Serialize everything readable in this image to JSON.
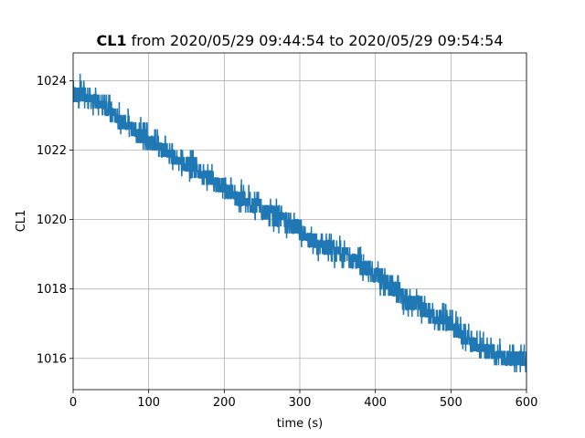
{
  "chart_data": {
    "type": "line",
    "title_bold": "CL1",
    "title_rest": " from 2020/05/29 09:44:54 to 2020/05/29 09:54:54",
    "xlabel": "time (s)",
    "ylabel": "CL1",
    "xlim": [
      0,
      600
    ],
    "ylim": [
      1015.1,
      1024.8
    ],
    "grid": true,
    "series_color": "#1f77b4",
    "x_ticks": [
      {
        "value": 0,
        "label": "0"
      },
      {
        "value": 100,
        "label": "100"
      },
      {
        "value": 200,
        "label": "200"
      },
      {
        "value": 300,
        "label": "300"
      },
      {
        "value": 400,
        "label": "400"
      },
      {
        "value": 500,
        "label": "500"
      },
      {
        "value": 600,
        "label": "600"
      }
    ],
    "y_ticks": [
      {
        "value": 1016,
        "label": "1016"
      },
      {
        "value": 1018,
        "label": "1018"
      },
      {
        "value": 1020,
        "label": "1020"
      },
      {
        "value": 1022,
        "label": "1022"
      },
      {
        "value": 1024,
        "label": "1024"
      }
    ],
    "series": [
      {
        "x": [
          0,
          20,
          40,
          60,
          80,
          100,
          120,
          140,
          160,
          180,
          200,
          220,
          240,
          260,
          280,
          300,
          320,
          340,
          360,
          380,
          400,
          420,
          440,
          460,
          480,
          500,
          520,
          540,
          560,
          580,
          600
        ],
        "y_center": [
          1023.6,
          1023.5,
          1023.3,
          1022.9,
          1022.6,
          1022.3,
          1022.0,
          1021.7,
          1021.5,
          1021.2,
          1020.9,
          1020.6,
          1020.4,
          1020.2,
          1020.0,
          1019.7,
          1019.3,
          1019.1,
          1019.0,
          1018.7,
          1018.4,
          1018.1,
          1017.7,
          1017.5,
          1017.2,
          1017.0,
          1016.6,
          1016.3,
          1016.1,
          1016.0,
          1015.9
        ],
        "y_low": [
          1023.2,
          1023.0,
          1022.9,
          1022.5,
          1022.2,
          1021.9,
          1021.6,
          1021.3,
          1021.0,
          1020.8,
          1020.5,
          1020.2,
          1019.9,
          1019.7,
          1019.5,
          1019.2,
          1018.8,
          1018.6,
          1018.5,
          1018.3,
          1017.9,
          1017.6,
          1017.2,
          1017.0,
          1016.8,
          1016.5,
          1016.2,
          1015.9,
          1015.7,
          1015.6,
          1015.6
        ],
        "y_high": [
          1024.4,
          1024.0,
          1023.8,
          1023.4,
          1023.1,
          1022.8,
          1022.5,
          1022.2,
          1022.0,
          1021.7,
          1021.4,
          1021.2,
          1020.9,
          1020.7,
          1020.5,
          1020.2,
          1019.8,
          1019.6,
          1019.5,
          1019.3,
          1018.9,
          1018.6,
          1018.3,
          1018.0,
          1017.7,
          1017.5,
          1017.1,
          1016.8,
          1016.6,
          1016.5,
          1016.4
        ]
      }
    ]
  }
}
